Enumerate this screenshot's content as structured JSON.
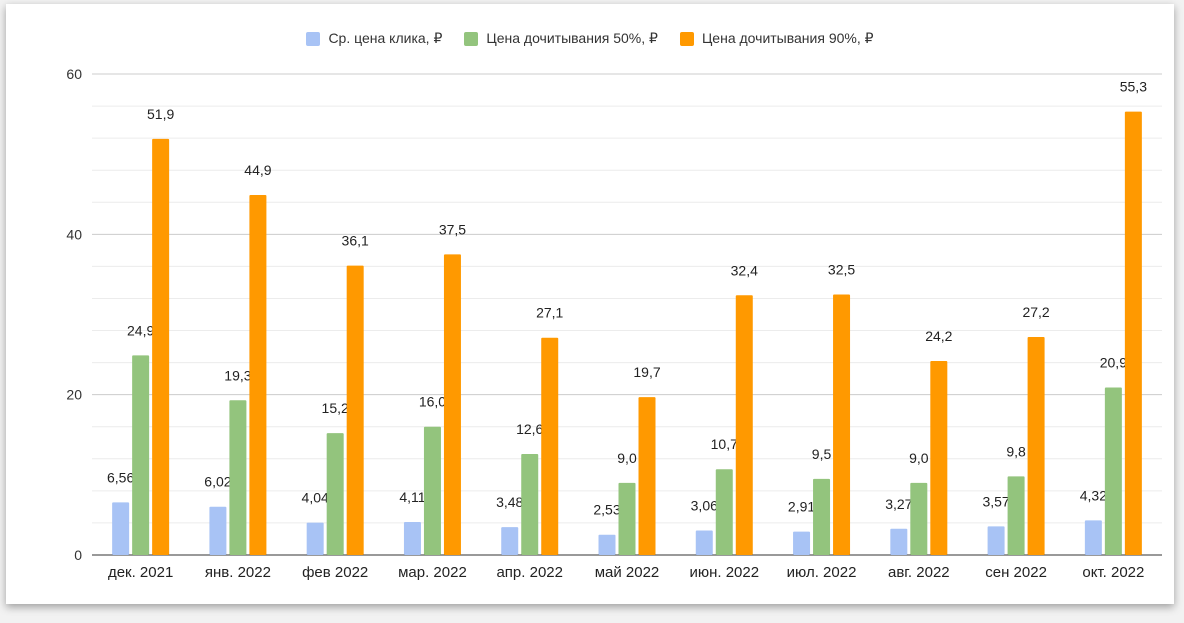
{
  "chart_data": {
    "type": "bar",
    "title": "",
    "xlabel": "",
    "ylabel": "",
    "ylim": [
      0,
      60
    ],
    "yticks": [
      0,
      20,
      40,
      60
    ],
    "legend_position": "top-center",
    "categories": [
      "дек. 2021",
      "янв. 2022",
      "фев 2022",
      "мар. 2022",
      "апр. 2022",
      "май 2022",
      "июн. 2022",
      "июл. 2022",
      "авг. 2022",
      "сен 2022",
      "окт. 2022"
    ],
    "series": [
      {
        "name": "Ср. цена клика, ₽",
        "color": "#a8c3f5",
        "values": [
          6.56,
          6.02,
          4.04,
          4.11,
          3.48,
          2.53,
          3.06,
          2.91,
          3.27,
          3.57,
          4.32
        ],
        "labels": [
          "6,56",
          "6,02",
          "4,04",
          "4,11",
          "3,48",
          "2,53",
          "3,06",
          "2,91",
          "3,27",
          "3,57",
          "4,32"
        ]
      },
      {
        "name": "Цена дочитывания 50%, ₽",
        "color": "#93c47d",
        "values": [
          24.9,
          19.3,
          15.2,
          16.0,
          12.6,
          9.0,
          10.7,
          9.5,
          9.0,
          9.8,
          20.9
        ],
        "labels": [
          "24,9",
          "19,3",
          "15,2",
          "16,0",
          "12,6",
          "9,0",
          "10,7",
          "9,5",
          "9,0",
          "9,8",
          "20,9"
        ]
      },
      {
        "name": "Цена дочитывания 90%, ₽",
        "color": "#ff9900",
        "values": [
          51.9,
          44.9,
          36.1,
          37.5,
          27.1,
          19.7,
          32.4,
          32.5,
          24.2,
          27.2,
          55.3
        ],
        "labels": [
          "51,9",
          "44,9",
          "36,1",
          "37,5",
          "27,1",
          "19,7",
          "32,4",
          "32,5",
          "24,2",
          "27,2",
          "55,3"
        ]
      }
    ]
  }
}
